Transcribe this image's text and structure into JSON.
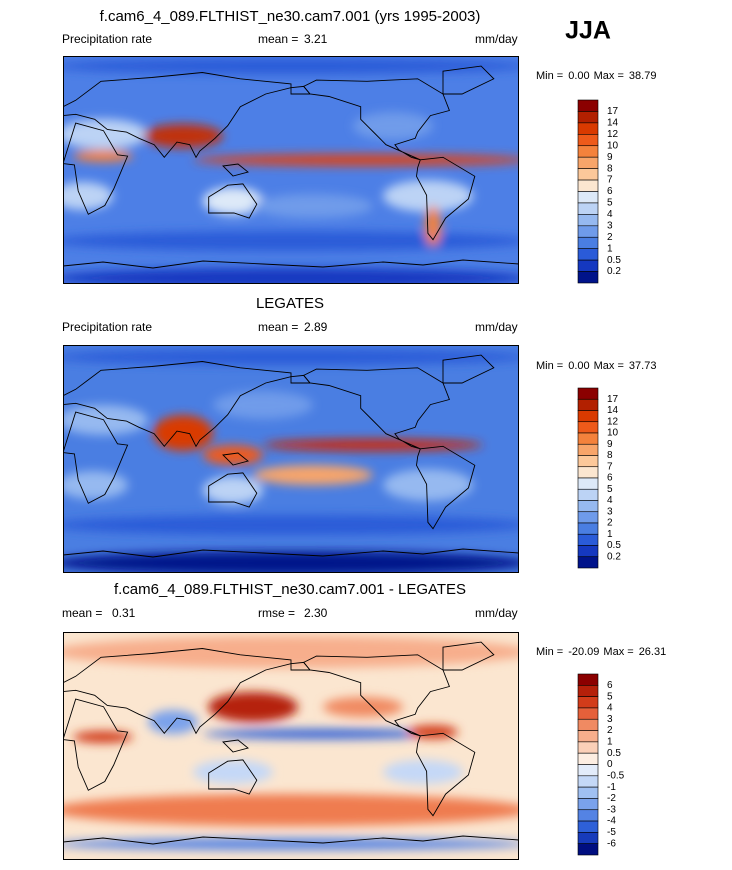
{
  "season": "JJA",
  "panels": [
    {
      "title": "f.cam6_4_089.FLTHIST_ne30.cam7.001 (yrs 1995-2003)",
      "left_text": "Precipitation rate",
      "center_label": "mean =",
      "center_value": "3.21",
      "units": "mm/day",
      "min_label": "Min =",
      "min": "0.00",
      "max_label": "Max =",
      "max": "38.79",
      "colorbar": {
        "labels": [
          17,
          14,
          12,
          10,
          9,
          8,
          7,
          6,
          5,
          4,
          3,
          2,
          1,
          0.5,
          0.2
        ],
        "colors": [
          "#8b0000",
          "#b22000",
          "#d93a00",
          "#ee5a1a",
          "#f4823c",
          "#f8a56a",
          "#fcc89a",
          "#fbe6d0",
          "#dde9f8",
          "#bcd3f5",
          "#96b9f0",
          "#6f9bea",
          "#4a7ee2",
          "#2a5bd8",
          "#1538c0",
          "#00138a"
        ]
      }
    },
    {
      "title": "LEGATES",
      "left_text": "Precipitation rate",
      "center_label": "mean =",
      "center_value": "2.89",
      "units": "mm/day",
      "min_label": "Min =",
      "min": "0.00",
      "max_label": "Max =",
      "max": "37.73",
      "colorbar": {
        "labels": [
          17,
          14,
          12,
          10,
          9,
          8,
          7,
          6,
          5,
          4,
          3,
          2,
          1,
          0.5,
          0.2
        ],
        "colors": [
          "#8b0000",
          "#b22000",
          "#d93a00",
          "#ee5a1a",
          "#f4823c",
          "#f8a56a",
          "#fcc89a",
          "#fbe6d0",
          "#dde9f8",
          "#bcd3f5",
          "#96b9f0",
          "#6f9bea",
          "#4a7ee2",
          "#2a5bd8",
          "#1538c0",
          "#00138a"
        ]
      }
    },
    {
      "title": "f.cam6_4_089.FLTHIST_ne30.cam7.001 - LEGATES",
      "left_text": "mean =",
      "left_value": "0.31",
      "center_label": "rmse =",
      "center_value": "2.30",
      "units": "mm/day",
      "min_label": "Min =",
      "min": "-20.09",
      "max_label": "Max =",
      "max": "26.31",
      "colorbar": {
        "labels": [
          6,
          5,
          4,
          3,
          2,
          1,
          0.5,
          0,
          -0.5,
          -1,
          -2,
          -3,
          -4,
          -5,
          -6
        ],
        "colors": [
          "#8b0000",
          "#b5200a",
          "#d23c1a",
          "#e5603a",
          "#f08a62",
          "#f7ae8c",
          "#fbd0b8",
          "#fdeee2",
          "#e3ecfa",
          "#c4d8f7",
          "#a0c0f2",
          "#7aa2ec",
          "#5483e4",
          "#2e60d8",
          "#173bbb",
          "#000e80"
        ]
      }
    }
  ]
}
